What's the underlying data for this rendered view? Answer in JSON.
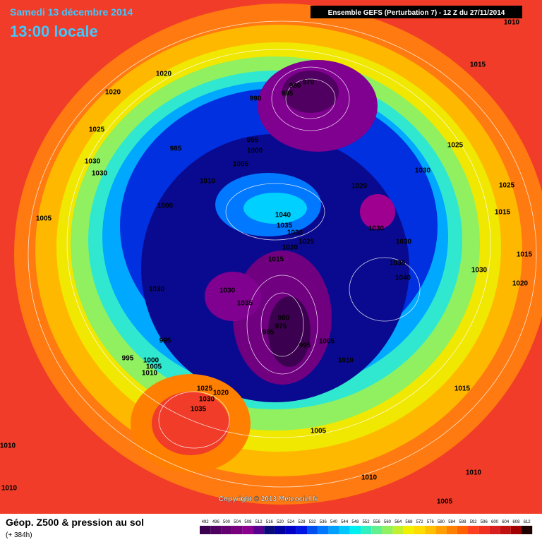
{
  "header": {
    "date": "Samedi 13 décembre 2014",
    "time": "13:00 locale",
    "run": "Ensemble GEFS (Perturbation 7)  -  12 Z du 27/11/2014"
  },
  "copyright": "Copyright © 2013 Meteociel.fr",
  "isobar_labels": [
    "1010",
    "1015",
    "1020",
    "1020",
    "970",
    "980",
    "985",
    "990",
    "1025",
    "995",
    "1000",
    "985",
    "1025",
    "1030",
    "1030",
    "1005",
    "1030",
    "1010",
    "1020",
    "1025",
    "1000",
    "1040",
    "1015",
    "1005",
    "1035",
    "1030",
    "1030",
    "1025",
    "1030",
    "1020",
    "1015",
    "1015",
    "1035",
    "1030",
    "1040",
    "1020",
    "1030",
    "1030",
    "1035",
    "980",
    "975",
    "985",
    "995",
    "1005",
    "995",
    "1010",
    "995",
    "1000",
    "1005",
    "1010",
    "1025",
    "1015",
    "1020",
    "1030",
    "1035",
    "1005",
    "1010",
    "1010",
    "1010",
    "1010",
    "1005"
  ],
  "legend": {
    "title": "Géop. Z500 & pression au sol",
    "subtitle": "(+ 384h)",
    "values": [
      492,
      496,
      500,
      504,
      508,
      512,
      516,
      520,
      524,
      528,
      532,
      536,
      540,
      544,
      548,
      552,
      556,
      560,
      564,
      568,
      572,
      576,
      580,
      584,
      588,
      592,
      596,
      600,
      604,
      608,
      612
    ],
    "colors": [
      "#3c0050",
      "#500060",
      "#640070",
      "#78007f",
      "#8c0090",
      "#5a0090",
      "#0a0a78",
      "#0000a0",
      "#0000c8",
      "#0014e6",
      "#0050f0",
      "#0078ff",
      "#00a0ff",
      "#00c8ff",
      "#00f0f0",
      "#30f0c0",
      "#60f090",
      "#90f060",
      "#c0f030",
      "#f0f000",
      "#ffdc00",
      "#ffc000",
      "#ffa000",
      "#ff8000",
      "#ff6000",
      "#ff4020",
      "#f03020",
      "#d82020",
      "#c01010",
      "#a00000",
      "#200000"
    ]
  }
}
